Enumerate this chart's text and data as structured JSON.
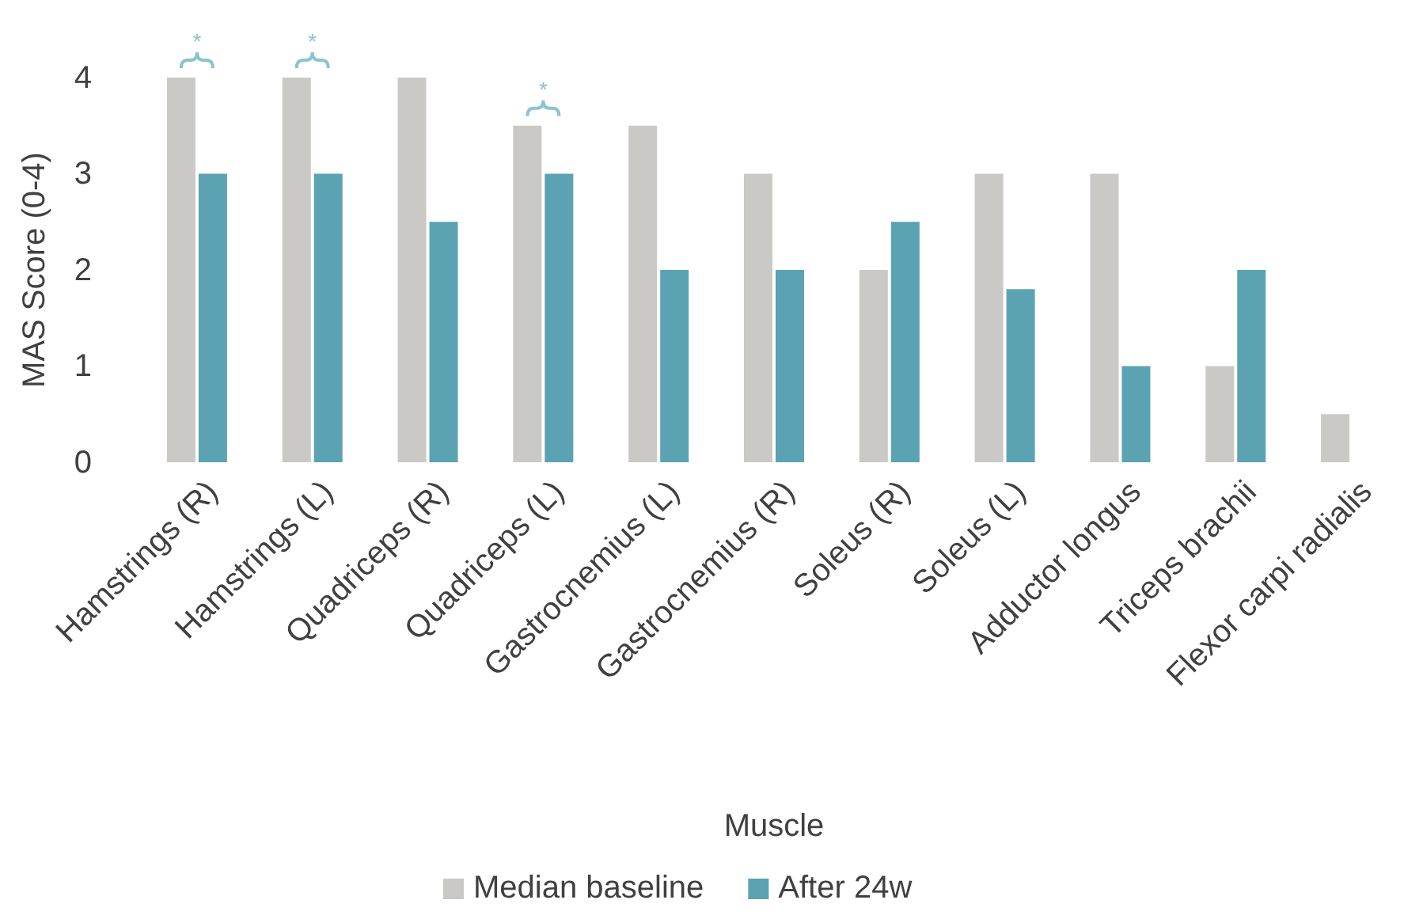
{
  "chart_data": {
    "type": "bar",
    "xlabel": "Muscle",
    "ylabel": "MAS Score (0-4)",
    "categories": [
      "Hamstrings (R)",
      "Hamstrings (L)",
      "Quadriceps (R)",
      "Quadriceps (L)",
      "Gastrocnemius (L)",
      "Gastrocnemius (R)",
      "Soleus (R)",
      "Soleus (L)",
      "Adductor longus",
      "Triceps brachii",
      "Flexor carpi radialis"
    ],
    "series": [
      {
        "name": "Median baseline",
        "color": "#cbc9c5",
        "values": [
          4,
          4,
          4,
          3.5,
          3.5,
          3,
          2,
          3,
          3,
          1,
          0.5
        ]
      },
      {
        "name": "After 24w",
        "color": "#5ba3b2",
        "values": [
          3,
          3,
          2.5,
          3,
          2,
          2,
          2.5,
          1.8,
          1,
          2,
          null
        ]
      }
    ],
    "ylim": [
      0,
      4
    ],
    "yticks": [
      0,
      1,
      2,
      3,
      4
    ],
    "grid": false,
    "legend": "bottom",
    "annotations": [
      "*",
      "*",
      "*"
    ]
  }
}
